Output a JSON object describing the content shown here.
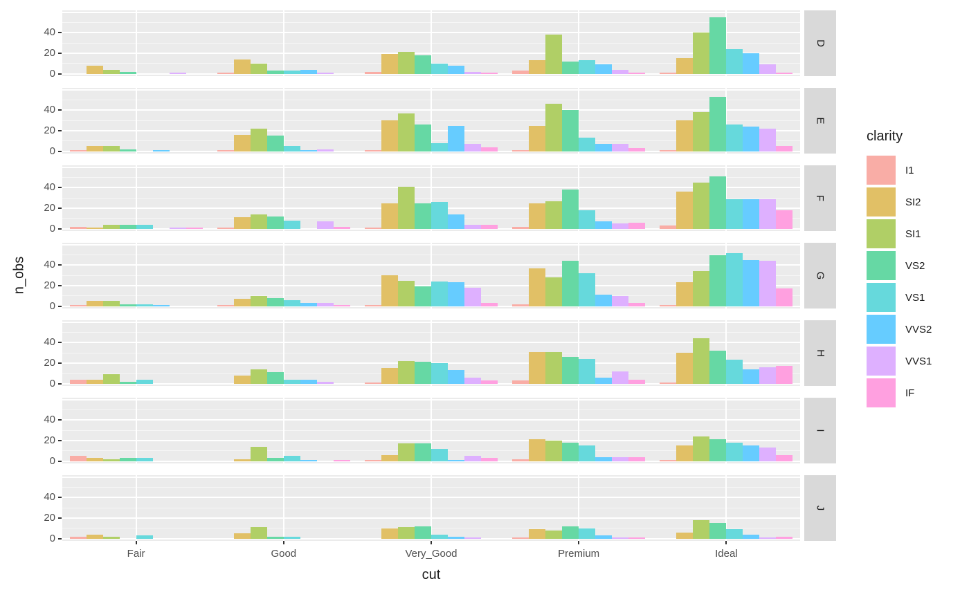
{
  "colors": {
    "panel_background": "#EBEBEB",
    "grid": "#FFFFFF",
    "strip_background": "#D9D9D9",
    "tick_text": "#4D4D4D",
    "title_text": "#1A1A1A"
  },
  "axes": {
    "x_title": "cut",
    "y_title": "n_obs",
    "x_tick_labels": [
      "Fair",
      "Good",
      "Very_Good",
      "Premium",
      "Ideal"
    ],
    "y_tick_labels": [
      "0",
      "20",
      "40"
    ],
    "y_tick_values": [
      0,
      20,
      40
    ]
  },
  "legend": {
    "title": "clarity",
    "items": [
      {
        "label": "I1",
        "color": "#F9ADA6"
      },
      {
        "label": "SI2",
        "color": "#E1C066"
      },
      {
        "label": "SI1",
        "color": "#B0CF66"
      },
      {
        "label": "VS2",
        "color": "#66D8A4"
      },
      {
        "label": "VS1",
        "color": "#66D9DC"
      },
      {
        "label": "VVS2",
        "color": "#66CCFF"
      },
      {
        "label": "VVS1",
        "color": "#DEB0FF"
      },
      {
        "label": "IF",
        "color": "#FFA0E0"
      }
    ]
  },
  "chart_data": {
    "type": "bar",
    "title": "",
    "xlabel": "cut",
    "ylabel": "n_obs",
    "grid": true,
    "legend_position": "right",
    "ylim": [
      0,
      62
    ],
    "yticks": [
      0,
      20,
      40
    ],
    "categories": [
      "Fair",
      "Good",
      "Very_Good",
      "Premium",
      "Ideal"
    ],
    "series_names": [
      "I1",
      "SI2",
      "SI1",
      "VS2",
      "VS1",
      "VVS2",
      "VVS1",
      "IF"
    ],
    "facet_variable": "color",
    "facets": [
      {
        "label": "D",
        "values": {
          "Fair": [
            0,
            8,
            4,
            2,
            0,
            0,
            1,
            0
          ],
          "Good": [
            1,
            14,
            10,
            3,
            3,
            4,
            1,
            0
          ],
          "Very_Good": [
            2,
            19,
            21,
            18,
            10,
            8,
            2,
            1
          ],
          "Premium": [
            3,
            13,
            38,
            12,
            13,
            9,
            4,
            1
          ],
          "Ideal": [
            1,
            15,
            40,
            55,
            24,
            20,
            9,
            1
          ]
        }
      },
      {
        "label": "E",
        "values": {
          "Fair": [
            1,
            5,
            5,
            2,
            0,
            1,
            0,
            0
          ],
          "Good": [
            1,
            16,
            22,
            15,
            5,
            1,
            2,
            0
          ],
          "Very_Good": [
            1,
            30,
            37,
            26,
            8,
            25,
            7,
            4
          ],
          "Premium": [
            1,
            25,
            46,
            40,
            13,
            7,
            7,
            3
          ],
          "Ideal": [
            1,
            30,
            38,
            53,
            26,
            24,
            22,
            5
          ]
        }
      },
      {
        "label": "F",
        "values": {
          "Fair": [
            2,
            1,
            4,
            4,
            4,
            0,
            1,
            1
          ],
          "Good": [
            1,
            11,
            14,
            12,
            8,
            0,
            7,
            2
          ],
          "Very_Good": [
            1,
            25,
            41,
            25,
            26,
            14,
            4,
            4
          ],
          "Premium": [
            2,
            25,
            27,
            38,
            18,
            7,
            5,
            6
          ],
          "Ideal": [
            3,
            36,
            45,
            51,
            29,
            29,
            29,
            18
          ]
        }
      },
      {
        "label": "G",
        "values": {
          "Fair": [
            1,
            5,
            5,
            2,
            2,
            1,
            0,
            0
          ],
          "Good": [
            1,
            7,
            10,
            8,
            6,
            3,
            3,
            1
          ],
          "Very_Good": [
            1,
            30,
            25,
            19,
            24,
            23,
            18,
            3
          ],
          "Premium": [
            2,
            37,
            28,
            44,
            32,
            11,
            10,
            3
          ],
          "Ideal": [
            1,
            23,
            34,
            50,
            52,
            45,
            44,
            17
          ]
        }
      },
      {
        "label": "H",
        "values": {
          "Fair": [
            4,
            4,
            9,
            2,
            4,
            0,
            0,
            0
          ],
          "Good": [
            0,
            8,
            14,
            11,
            4,
            4,
            2,
            0
          ],
          "Very_Good": [
            1,
            15,
            22,
            21,
            20,
            13,
            6,
            3
          ],
          "Premium": [
            3,
            31,
            31,
            26,
            24,
            6,
            12,
            4
          ],
          "Ideal": [
            1,
            30,
            44,
            32,
            23,
            14,
            16,
            17
          ]
        }
      },
      {
        "label": "I",
        "values": {
          "Fair": [
            5,
            3,
            2,
            3,
            3,
            0,
            0,
            0
          ],
          "Good": [
            0,
            2,
            14,
            3,
            5,
            1,
            0,
            1
          ],
          "Very_Good": [
            1,
            6,
            17,
            17,
            12,
            1,
            5,
            3
          ],
          "Premium": [
            2,
            21,
            20,
            18,
            15,
            4,
            4,
            4
          ],
          "Ideal": [
            1,
            15,
            24,
            21,
            18,
            15,
            13,
            6
          ]
        }
      },
      {
        "label": "J",
        "values": {
          "Fair": [
            2,
            4,
            2,
            0,
            3,
            0,
            0,
            0
          ],
          "Good": [
            0,
            5,
            11,
            2,
            2,
            0,
            0,
            0
          ],
          "Very_Good": [
            0,
            10,
            11,
            12,
            4,
            2,
            1,
            0
          ],
          "Premium": [
            1,
            9,
            8,
            12,
            10,
            3,
            1,
            1
          ],
          "Ideal": [
            0,
            6,
            18,
            15,
            9,
            4,
            1,
            2
          ]
        }
      }
    ]
  }
}
